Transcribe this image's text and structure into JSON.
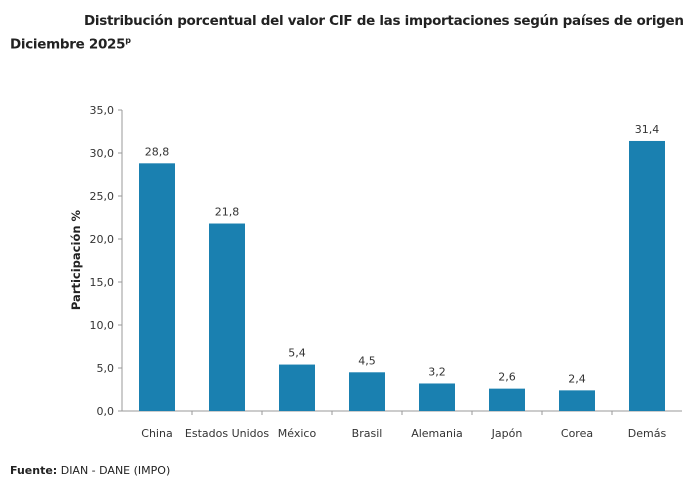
{
  "chart_data": {
    "type": "bar",
    "title": "Distribución porcentual del valor CIF de las importaciones según países de origen",
    "subtitle": "Diciembre 2025",
    "subtitle_superscript": "p",
    "xlabel": "",
    "ylabel": "Participación %",
    "categories": [
      "China",
      "Estados Unidos",
      "México",
      "Brasil",
      "Alemania",
      "Japón",
      "Corea",
      "Demás"
    ],
    "values": [
      28.8,
      21.8,
      5.4,
      4.5,
      3.2,
      2.6,
      2.4,
      31.4
    ],
    "data_labels": [
      "28,8",
      "21,8",
      "5,4",
      "4,5",
      "3,2",
      "2,6",
      "2,4",
      "31,4"
    ],
    "ylim": [
      0,
      35
    ],
    "yticks": [
      "0,0",
      "5,0",
      "10,0",
      "15,0",
      "20,0",
      "25,0",
      "30,0",
      "35,0"
    ],
    "grid": false,
    "bar_color": "#1a80b0"
  },
  "source": {
    "label": "Fuente:",
    "text": "DIAN - DANE (IMPO)"
  }
}
